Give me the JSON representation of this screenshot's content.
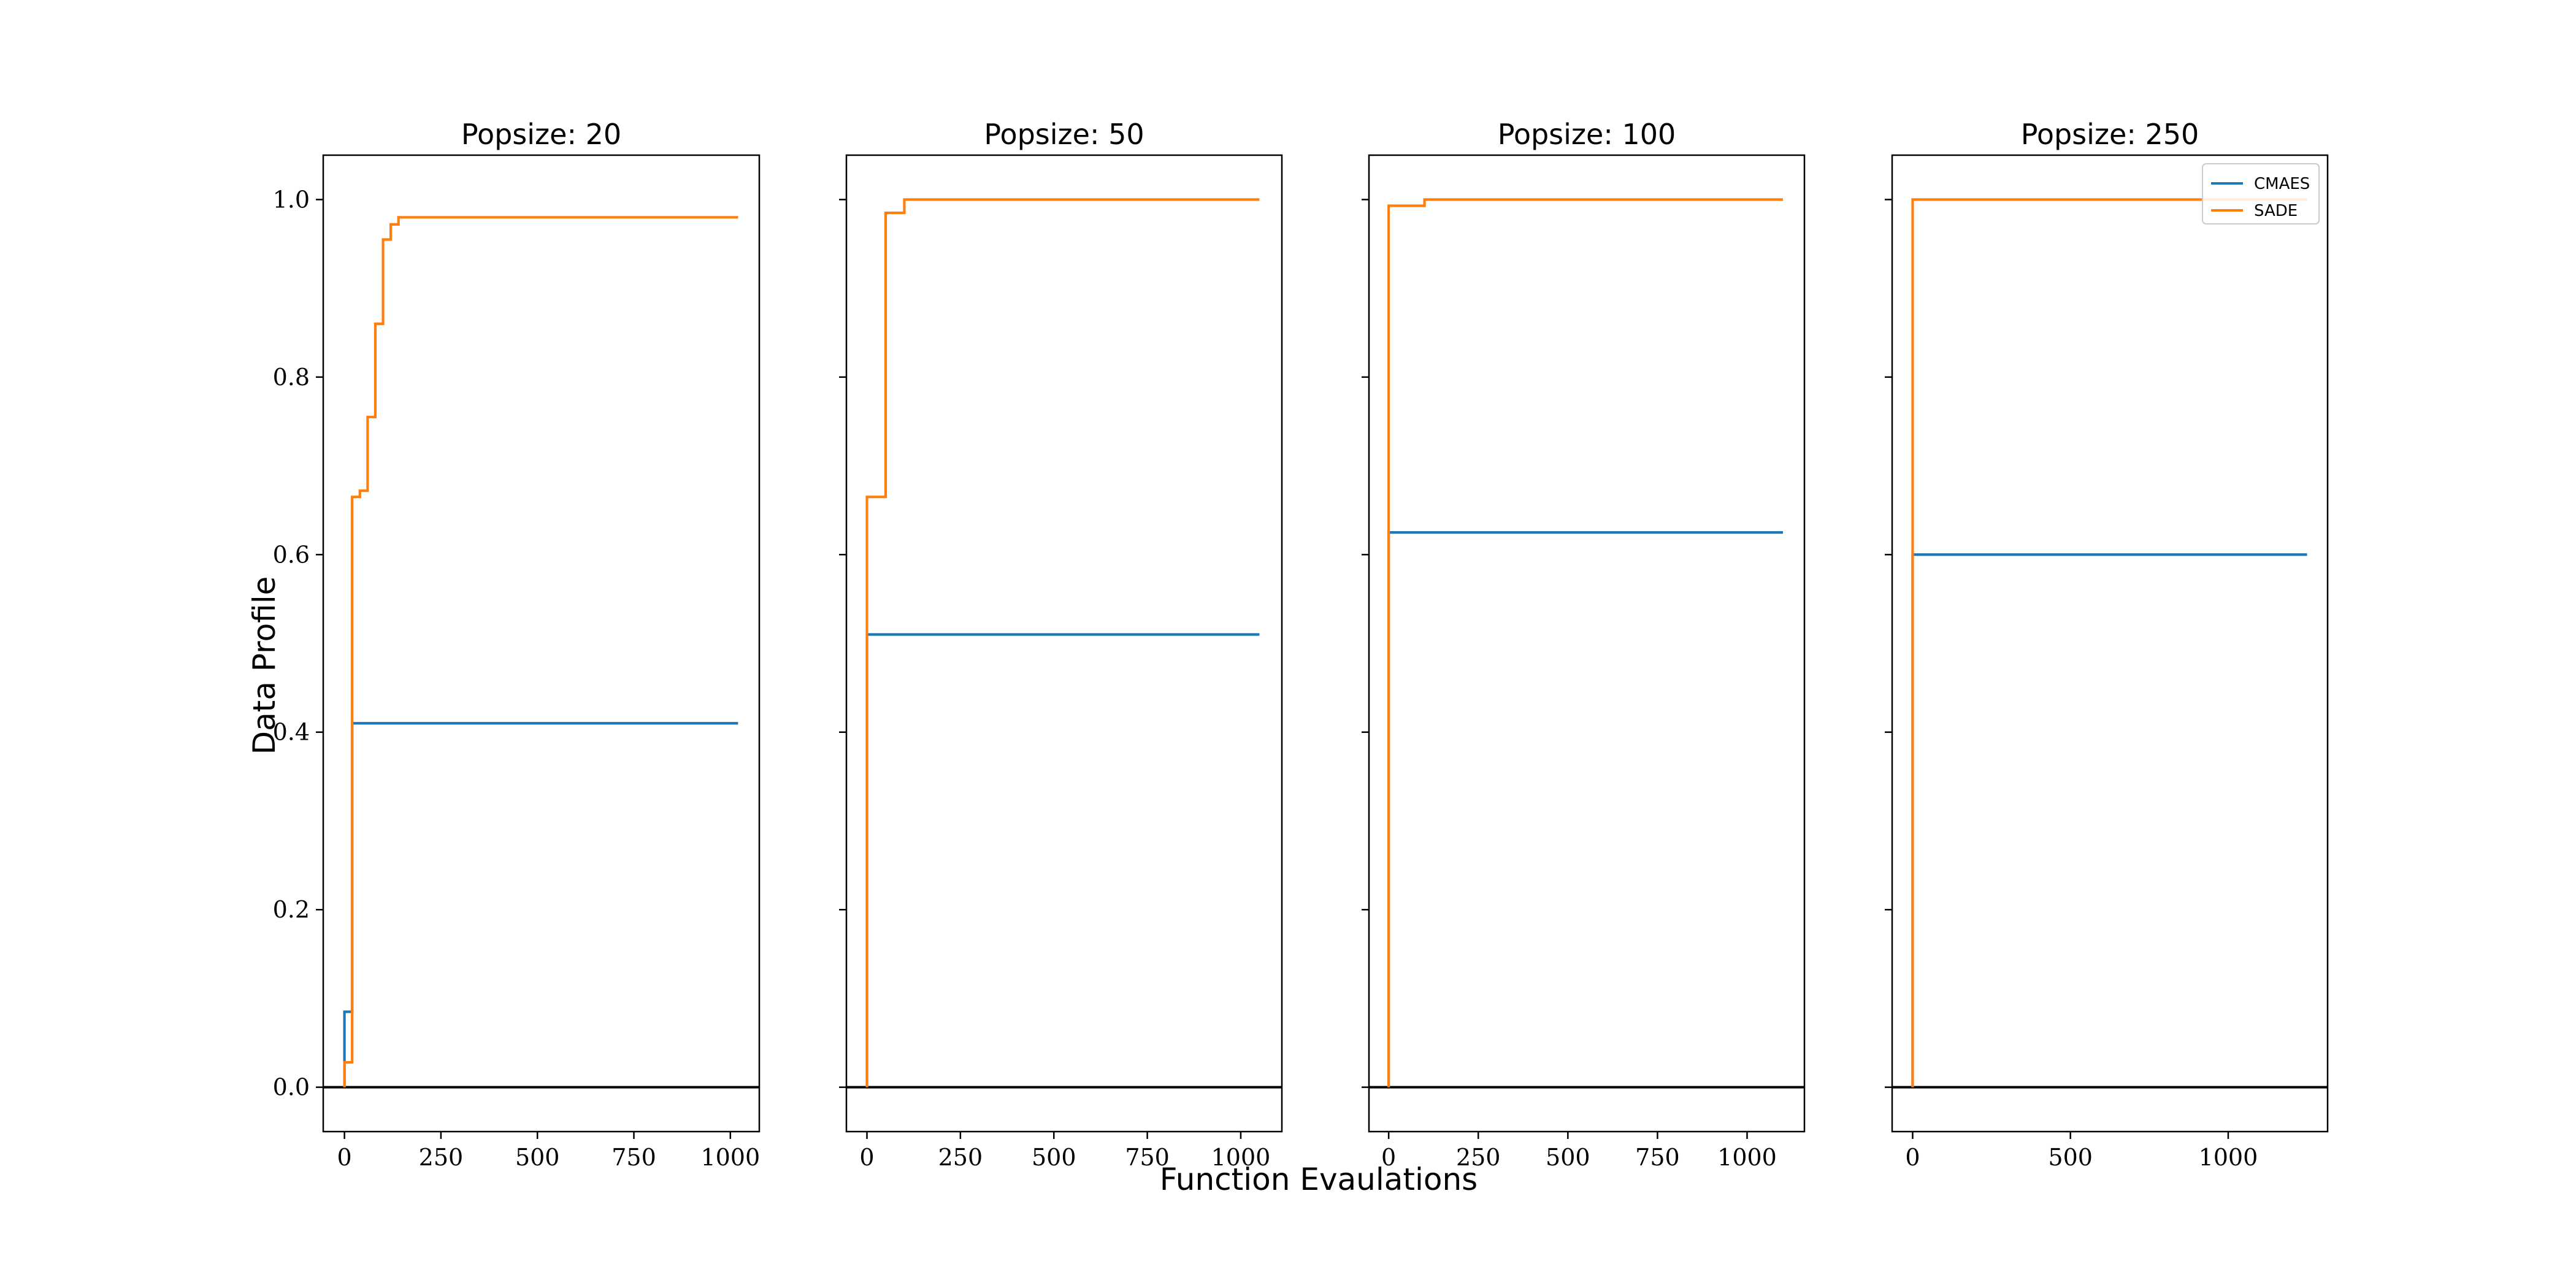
{
  "figure": {
    "xlabel": "Function Evaulations",
    "ylabel": "Data Profile"
  },
  "legend": {
    "placement": "upper-right of last panel",
    "entries": [
      {
        "label": "CMAES",
        "color": "#1f77b4"
      },
      {
        "label": "SADE",
        "color": "#ff7f0e"
      }
    ]
  },
  "colors": {
    "CMAES": "#1f77b4",
    "SADE": "#ff7f0e",
    "baseline": "#000000"
  },
  "chart_data": [
    {
      "type": "line",
      "title": "Popsize: 20",
      "xlim": [
        -55,
        1075
      ],
      "ylim": [
        -0.05,
        1.05
      ],
      "xticks": [
        0,
        250,
        500,
        750,
        1000
      ],
      "xtick_labels": [
        "0",
        "250",
        "500",
        "750",
        "1000"
      ],
      "yticks": [
        0.0,
        0.2,
        0.4,
        0.6,
        0.8,
        1.0
      ],
      "ytick_labels": [
        "0.0",
        "0.2",
        "0.4",
        "0.6",
        "0.8",
        "1.0"
      ],
      "show_ytick_labels": true,
      "series": [
        {
          "name": "CMAES",
          "step": true,
          "x": [
            0,
            0,
            20,
            20,
            1020
          ],
          "y": [
            0.0,
            0.085,
            0.085,
            0.41,
            0.41
          ]
        },
        {
          "name": "SADE",
          "step": true,
          "x": [
            0,
            0,
            20,
            20,
            40,
            40,
            60,
            60,
            80,
            80,
            100,
            100,
            120,
            120,
            140,
            140,
            1020
          ],
          "y": [
            0.0,
            0.028,
            0.028,
            0.665,
            0.665,
            0.672,
            0.672,
            0.755,
            0.755,
            0.86,
            0.86,
            0.955,
            0.955,
            0.972,
            0.972,
            0.98,
            0.98
          ]
        }
      ]
    },
    {
      "type": "line",
      "title": "Popsize: 50",
      "xlim": [
        -55,
        1110
      ],
      "ylim": [
        -0.05,
        1.05
      ],
      "xticks": [
        0,
        250,
        500,
        750,
        1000
      ],
      "xtick_labels": [
        "0",
        "250",
        "500",
        "750",
        "1000"
      ],
      "yticks": [
        0.0,
        0.2,
        0.4,
        0.6,
        0.8,
        1.0
      ],
      "ytick_labels": [
        "0.0",
        "0.2",
        "0.4",
        "0.6",
        "0.8",
        "1.0"
      ],
      "show_ytick_labels": false,
      "series": [
        {
          "name": "CMAES",
          "step": true,
          "x": [
            0,
            0,
            1050
          ],
          "y": [
            0.0,
            0.51,
            0.51
          ]
        },
        {
          "name": "SADE",
          "step": true,
          "x": [
            0,
            0,
            50,
            50,
            100,
            100,
            1050
          ],
          "y": [
            0.0,
            0.665,
            0.665,
            0.985,
            0.985,
            1.0,
            1.0
          ]
        }
      ]
    },
    {
      "type": "line",
      "title": "Popsize: 100",
      "xlim": [
        -55,
        1160
      ],
      "ylim": [
        -0.05,
        1.05
      ],
      "xticks": [
        0,
        250,
        500,
        750,
        1000
      ],
      "xtick_labels": [
        "0",
        "250",
        "500",
        "750",
        "1000"
      ],
      "yticks": [
        0.0,
        0.2,
        0.4,
        0.6,
        0.8,
        1.0
      ],
      "ytick_labels": [
        "0.0",
        "0.2",
        "0.4",
        "0.6",
        "0.8",
        "1.0"
      ],
      "show_ytick_labels": false,
      "series": [
        {
          "name": "CMAES",
          "step": true,
          "x": [
            0,
            0,
            1100
          ],
          "y": [
            0.0,
            0.625,
            0.625
          ]
        },
        {
          "name": "SADE",
          "step": true,
          "x": [
            0,
            0,
            100,
            100,
            1100
          ],
          "y": [
            0.0,
            0.993,
            0.993,
            1.0,
            1.0
          ]
        }
      ]
    },
    {
      "type": "line",
      "title": "Popsize: 250",
      "xlim": [
        -65,
        1315
      ],
      "ylim": [
        -0.05,
        1.05
      ],
      "xticks": [
        0,
        500,
        1000
      ],
      "xtick_labels": [
        "0",
        "500",
        "1000"
      ],
      "yticks": [
        0.0,
        0.2,
        0.4,
        0.6,
        0.8,
        1.0
      ],
      "ytick_labels": [
        "0.0",
        "0.2",
        "0.4",
        "0.6",
        "0.8",
        "1.0"
      ],
      "show_ytick_labels": false,
      "series": [
        {
          "name": "CMAES",
          "step": true,
          "x": [
            0,
            0,
            1250
          ],
          "y": [
            0.0,
            0.6,
            0.6
          ]
        },
        {
          "name": "SADE",
          "step": true,
          "x": [
            0,
            0,
            1250
          ],
          "y": [
            0.0,
            1.0,
            1.0
          ]
        }
      ]
    }
  ]
}
